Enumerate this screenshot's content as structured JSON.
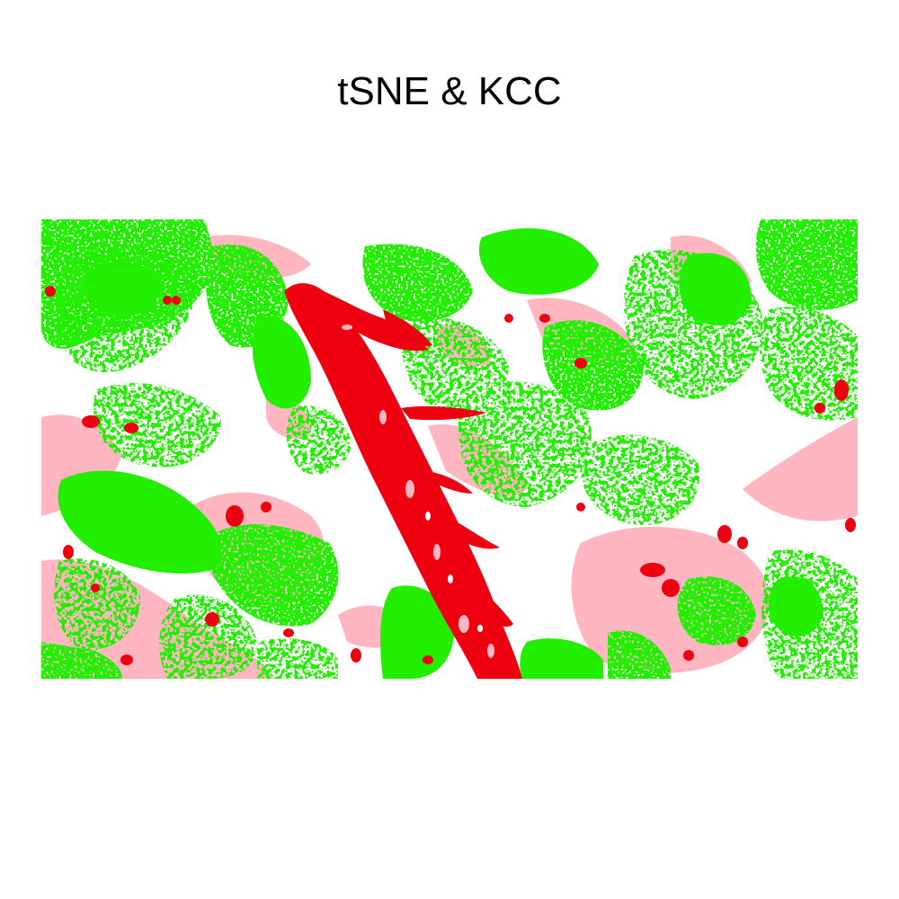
{
  "title": "tSNE & KCC",
  "image": {
    "description_type": "cluster map",
    "colors": {
      "background": "#ffffff",
      "cluster_green": "#22ee00",
      "cluster_red": "#ee0011",
      "cluster_pink": "#ffb6c1"
    }
  }
}
